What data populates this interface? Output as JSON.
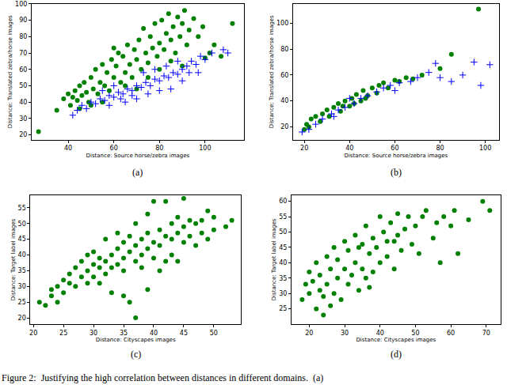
{
  "caption": "Figure 2:  Justifying the high correlation between distances in different domains.  (a)",
  "chart_data": [
    {
      "type": "scatter",
      "subtitle": "(a)",
      "xlabel": "Distance: Source horse/zebra images",
      "ylabel": "Distance: Translated zebra/horse images",
      "xlim": [
        24,
        117
      ],
      "xticks": [
        40,
        60,
        80,
        100
      ],
      "ylim": [
        17,
        100
      ],
      "yticks": [
        20,
        30,
        40,
        50,
        60,
        70,
        80,
        90,
        100
      ],
      "series": [
        {
          "color": "#008000",
          "marker": "circle",
          "x": [
            27,
            35,
            38,
            40,
            41,
            42,
            43,
            44,
            45,
            46,
            47,
            48,
            49,
            50,
            51,
            52,
            53,
            54,
            55,
            56,
            57,
            58,
            59,
            60,
            61,
            62,
            63,
            64,
            65,
            66,
            67,
            68,
            69,
            70,
            71,
            72,
            73,
            74,
            75,
            76,
            77,
            78,
            79,
            80,
            81,
            82,
            83,
            84,
            85,
            86,
            87,
            88,
            89,
            90,
            91,
            92,
            93,
            95,
            97,
            99,
            100,
            102,
            104,
            107,
            112,
            60,
            55,
            65,
            70,
            75,
            80,
            45,
            50,
            85,
            90
          ],
          "values": [
            22,
            35,
            42,
            45,
            38,
            43,
            47,
            41,
            50,
            44,
            52,
            46,
            40,
            55,
            48,
            60,
            45,
            52,
            63,
            50,
            58,
            47,
            66,
            55,
            62,
            70,
            52,
            68,
            58,
            75,
            63,
            55,
            72,
            66,
            78,
            60,
            85,
            70,
            64,
            80,
            73,
            88,
            68,
            76,
            90,
            72,
            82,
            94,
            78,
            86,
            70,
            92,
            80,
            88,
            96,
            75,
            84,
            91,
            80,
            86,
            67,
            70,
            75,
            68,
            88,
            73,
            40,
            50,
            48,
            55,
            60,
            36,
            38,
            65,
            62
          ]
        },
        {
          "color": "#0000ff",
          "marker": "plus",
          "x": [
            42,
            44,
            46,
            48,
            50,
            52,
            54,
            56,
            58,
            60,
            62,
            64,
            66,
            68,
            70,
            72,
            74,
            76,
            78,
            80,
            82,
            84,
            86,
            88,
            90,
            92,
            94,
            96,
            98,
            100,
            103,
            108,
            110,
            65,
            70,
            75,
            80,
            85,
            60,
            55,
            73,
            78,
            83,
            88,
            93,
            58,
            63,
            68,
            90,
            97
          ],
          "values": [
            32,
            35,
            38,
            36,
            40,
            39,
            42,
            41,
            44,
            43,
            46,
            45,
            48,
            47,
            50,
            49,
            52,
            50,
            54,
            53,
            56,
            55,
            58,
            57,
            60,
            62,
            65,
            63,
            68,
            66,
            70,
            72,
            70,
            40,
            42,
            45,
            47,
            48,
            50,
            47,
            58,
            60,
            62,
            65,
            58,
            38,
            42,
            44,
            53,
            58
          ]
        }
      ]
    },
    {
      "type": "scatter",
      "subtitle": "(b)",
      "xlabel": "Distance: Source horse/zebra images",
      "ylabel": "Distance: Translated zebra/horse images",
      "xlim": [
        15,
        106
      ],
      "xticks": [
        20,
        40,
        60,
        80,
        100
      ],
      "ylim": [
        10,
        115
      ],
      "yticks": [
        20,
        40,
        60,
        80,
        100
      ],
      "series": [
        {
          "color": "#008000",
          "marker": "circle",
          "x": [
            20,
            21,
            22,
            23,
            25,
            27,
            28,
            30,
            31,
            33,
            35,
            36,
            38,
            40,
            41,
            43,
            45,
            46,
            48,
            50,
            52,
            53,
            55,
            57,
            60,
            62,
            65,
            68,
            72,
            80,
            85,
            97,
            42,
            47,
            37
          ],
          "values": [
            18,
            22,
            20,
            26,
            28,
            24,
            30,
            33,
            28,
            35,
            38,
            32,
            40,
            36,
            42,
            45,
            40,
            48,
            44,
            50,
            46,
            52,
            54,
            50,
            56,
            55,
            58,
            57,
            60,
            65,
            76,
            111,
            38,
            42,
            36
          ]
        },
        {
          "color": "#0000ff",
          "marker": "plus",
          "x": [
            19,
            22,
            25,
            28,
            32,
            35,
            38,
            42,
            45,
            48,
            52,
            55,
            58,
            62,
            67,
            70,
            75,
            78,
            80,
            85,
            90,
            95,
            98,
            102,
            33,
            40,
            60
          ],
          "values": [
            16,
            18,
            22,
            26,
            30,
            33,
            35,
            38,
            42,
            44,
            47,
            50,
            52,
            54,
            55,
            58,
            62,
            69,
            58,
            55,
            60,
            70,
            52,
            68,
            28,
            42,
            48
          ]
        }
      ]
    },
    {
      "type": "scatter",
      "subtitle": "(c)",
      "xlabel": "Distance: Cityscapes images",
      "ylabel": "Distance: Target label images",
      "xlim": [
        19.5,
        54.5
      ],
      "xticks": [
        20,
        25,
        30,
        35,
        40,
        45,
        50
      ],
      "ylim": [
        18,
        59
      ],
      "yticks": [
        20,
        25,
        30,
        35,
        40,
        45,
        50,
        55
      ],
      "series": [
        {
          "color": "#008000",
          "marker": "circle",
          "x": [
            21,
            22,
            23,
            23,
            24,
            24,
            25,
            25,
            26,
            26,
            27,
            27,
            28,
            28,
            29,
            29,
            30,
            30,
            30,
            31,
            31,
            32,
            32,
            32,
            33,
            33,
            33,
            34,
            34,
            34,
            35,
            35,
            35,
            36,
            36,
            36,
            37,
            37,
            37,
            37,
            38,
            38,
            38,
            39,
            39,
            39,
            40,
            40,
            40,
            41,
            41,
            42,
            42,
            42,
            43,
            43,
            43,
            44,
            44,
            44,
            45,
            45,
            45,
            46,
            46,
            47,
            47,
            48,
            48,
            49,
            49,
            50,
            50,
            52,
            53,
            29,
            31,
            35,
            41,
            39
          ],
          "values": [
            25,
            24,
            29,
            27,
            30,
            25,
            32,
            28,
            31,
            34,
            30,
            36,
            33,
            38,
            35,
            31,
            37,
            41,
            33,
            36,
            39,
            34,
            45,
            38,
            40,
            36,
            28,
            42,
            37,
            47,
            39,
            44,
            35,
            25,
            41,
            46,
            38,
            50,
            43,
            20,
            45,
            40,
            36,
            47,
            42,
            53,
            44,
            39,
            57,
            48,
            43,
            57,
            46,
            38,
            50,
            40,
            45,
            52,
            47,
            38,
            58,
            49,
            44,
            51,
            46,
            50,
            43,
            51,
            47,
            54,
            45,
            52,
            48,
            49,
            51,
            40,
            31,
            27,
            35,
            29
          ]
        }
      ]
    },
    {
      "type": "scatter",
      "subtitle": "(d)",
      "xlabel": "Distance: Cityscapes images",
      "ylabel": "Distance: Target label images",
      "xlim": [
        15,
        74
      ],
      "xticks": [
        20,
        30,
        40,
        50,
        60,
        70
      ],
      "ylim": [
        20,
        62
      ],
      "yticks": [
        25,
        30,
        35,
        40,
        45,
        50,
        55,
        60
      ],
      "series": [
        {
          "color": "#008000",
          "marker": "circle",
          "x": [
            18,
            19,
            20,
            20,
            21,
            22,
            22,
            23,
            23,
            24,
            24,
            25,
            25,
            26,
            27,
            27,
            28,
            28,
            29,
            30,
            30,
            31,
            31,
            32,
            33,
            33,
            34,
            35,
            35,
            36,
            36,
            37,
            38,
            38,
            39,
            40,
            40,
            41,
            42,
            42,
            43,
            44,
            45,
            45,
            46,
            47,
            48,
            49,
            50,
            51,
            52,
            53,
            55,
            56,
            57,
            58,
            60,
            61,
            62,
            65,
            69,
            71,
            26,
            34,
            44,
            37
          ],
          "values": [
            28,
            33,
            30,
            37,
            34,
            25,
            40,
            31,
            36,
            23,
            29,
            42,
            33,
            38,
            30,
            45,
            35,
            41,
            28,
            47,
            38,
            33,
            44,
            36,
            49,
            40,
            31,
            46,
            38,
            52,
            35,
            43,
            48,
            37,
            45,
            55,
            40,
            50,
            42,
            47,
            53,
            38,
            49,
            56,
            44,
            51,
            55,
            46,
            52,
            43,
            55,
            57,
            48,
            53,
            40,
            55,
            52,
            57,
            43,
            54,
            60,
            57,
            26,
            45,
            47,
            32
          ]
        }
      ]
    }
  ]
}
